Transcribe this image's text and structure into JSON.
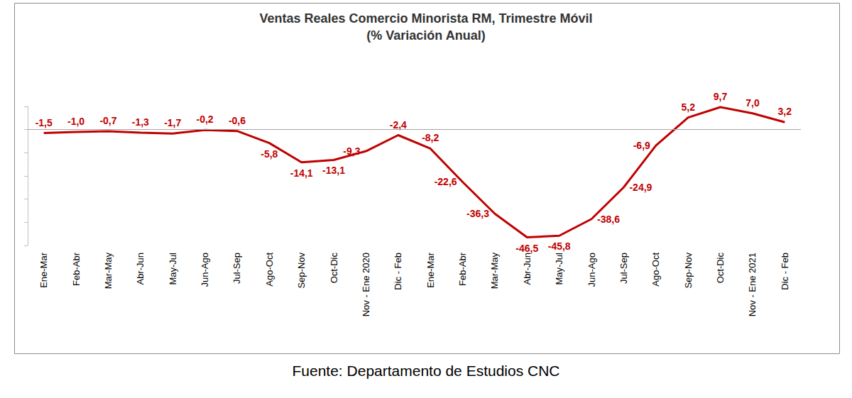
{
  "chart_data": {
    "type": "line",
    "title": "Ventas Reales Comercio Minorista RM, Trimestre Móvil",
    "subtitle": "(% Variación Anual)",
    "annotations": [
      "Fuente: Departamento de Estudios CNC"
    ],
    "categories": [
      "Ene-Mar",
      "Feb-Abr",
      "Mar-May",
      "Abr-Jun",
      "May-Jul",
      "Jun-Ago",
      "Jul-Sep",
      "Ago-Oct",
      "Sep-Nov",
      "Oct-Dic",
      "Nov - Ene 2020",
      "Dic - Feb",
      "Ene-Mar",
      "Feb-Abr",
      "Mar-May",
      "Abr-Jun",
      "May-Jul",
      "Jun-Ago",
      "Jul-Sep",
      "Ago-Oct",
      "Sep-Nov",
      "Oct-Dic",
      "Nov - Ene 2021",
      "Dic - Feb"
    ],
    "values": [
      -1.5,
      -1.0,
      -0.7,
      -1.3,
      -1.7,
      -0.2,
      -0.6,
      -5.8,
      -14.1,
      -13.1,
      -9.3,
      -2.4,
      -8.2,
      -22.6,
      -36.3,
      -46.5,
      -45.8,
      -38.6,
      -24.9,
      -6.9,
      5.2,
      9.7,
      7.0,
      3.2
    ],
    "value_labels": [
      "-1,5",
      "-1,0",
      "-0,7",
      "-1,3",
      "-1,7",
      "-0,2",
      "-0,6",
      "-5,8",
      "-14,1",
      "-13,1",
      "-9,3",
      "-2,4",
      "-8,2",
      "-22,6",
      "-36,3",
      "-46,5",
      "-45,8",
      "-38,6",
      "-24,9",
      "-6,9",
      "5,2",
      "9,7",
      "7,0",
      "3,2"
    ],
    "color": "#c00000",
    "marker": "none",
    "line_style": "solid",
    "data_labels": true,
    "ylim": [
      -50,
      10
    ],
    "yticks": [
      -50,
      -40,
      -30,
      -20,
      -10,
      0,
      10
    ],
    "tick_labels": "x",
    "grid": false
  }
}
